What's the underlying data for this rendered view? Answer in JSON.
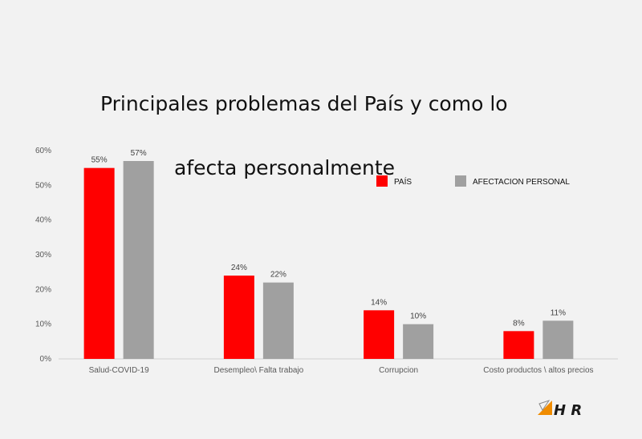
{
  "title_line1": "Principales problemas del País y como  lo",
  "title_line2": "afecta personalmente",
  "logo": {
    "text": "H R",
    "accent_color": "#f08c00"
  },
  "chart_data": {
    "type": "bar",
    "title": "Principales problemas del País y como  lo afecta personalmente",
    "categories": [
      "Salud-COVID-19",
      "Desempleo\\ Falta trabajo",
      "Corrupcion",
      "Costo productos \\ altos precios"
    ],
    "series": [
      {
        "name": "PAÍS",
        "values": [
          55,
          24,
          14,
          8
        ],
        "labels": [
          "55%",
          "24%",
          "14%",
          "8%"
        ],
        "color": "#ff0000"
      },
      {
        "name": "AFECTACION PERSONAL",
        "values": [
          57,
          22,
          10,
          11
        ],
        "labels": [
          "57%",
          "22%",
          "10%",
          "11%"
        ],
        "color": "#a0a0a0"
      }
    ],
    "ylim": [
      0,
      60
    ],
    "yticks": [
      "0%",
      "10%",
      "20%",
      "30%",
      "40%",
      "50%",
      "60%"
    ],
    "grid": false,
    "legend_position": "top-right"
  }
}
